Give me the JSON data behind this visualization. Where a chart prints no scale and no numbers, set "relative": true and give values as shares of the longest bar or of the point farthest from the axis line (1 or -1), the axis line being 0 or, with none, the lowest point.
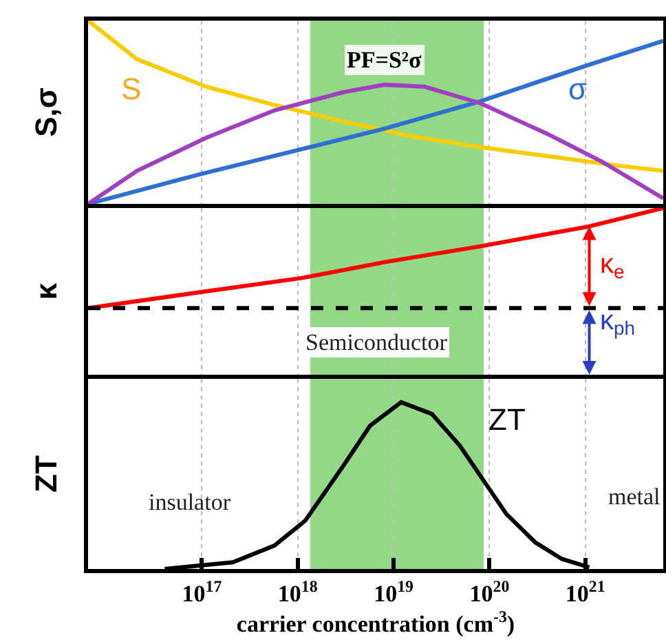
{
  "chart_data": [
    {
      "type": "line",
      "ylabel": "S,σ",
      "relative": true,
      "log": "x",
      "xlim": [
        6500000000000000.0,
        6.5e+21
      ],
      "xticks": [
        {
          "value": 1e+17,
          "label": null
        },
        {
          "value": 1e+18,
          "label": null
        },
        {
          "value": 1e+19,
          "label": null
        },
        {
          "value": 1e+20,
          "label": null
        },
        {
          "value": 1e+21,
          "label": null
        }
      ],
      "grid": "x",
      "tick_labels": false,
      "legend": false,
      "marker": "none",
      "line_style": "solid",
      "bands": [
        {
          "axis": "x",
          "from": 1.35e+18,
          "to": 8.7e+19,
          "color": "#93d886"
        }
      ],
      "series": [
        {
          "name": "S",
          "color": "#f5cd00",
          "x": [
            6500000000000000.0,
            2.1e+16,
            1.1e+17,
            5.7e+17,
            3e+18,
            1.5e+19,
            8e+19,
            4.1e+20,
            2.1e+21,
            6.5e+21
          ],
          "values": [
            1.0,
            0.79,
            0.64,
            0.54,
            0.45,
            0.37,
            0.31,
            0.26,
            0.21,
            0.18
          ]
        },
        {
          "name": "σ",
          "color": "#2f6fd0",
          "x": [
            6500000000000000.0,
            1.1e+17,
            8e+18,
            8e+19,
            1.1e+21,
            6.5e+21
          ],
          "values": [
            0,
            0.17,
            0.41,
            0.56,
            0.76,
            0.89
          ]
        },
        {
          "name": "PF=S²σ",
          "color": "#a040c0",
          "x": [
            6500000000000000.0,
            2.1e+16,
            1.1e+17,
            5.7e+17,
            3e+18,
            8e+18,
            2.1e+19,
            8e+19,
            4.1e+20,
            1.5e+21,
            6.5e+21
          ],
          "values": [
            0,
            0.18,
            0.36,
            0.51,
            0.61,
            0.65,
            0.64,
            0.55,
            0.38,
            0.23,
            0.03
          ]
        }
      ]
    },
    {
      "type": "line",
      "ylabel": "κ",
      "relative": true,
      "log": "x",
      "xlim": [
        6500000000000000.0,
        6.5e+21
      ],
      "xticks": [
        {
          "value": 1e+17,
          "label": null
        },
        {
          "value": 1e+18,
          "label": null
        },
        {
          "value": 1e+19,
          "label": null
        },
        {
          "value": 1e+20,
          "label": null
        },
        {
          "value": 1e+21,
          "label": null
        }
      ],
      "grid": "x",
      "tick_labels": false,
      "legend": false,
      "marker": "none",
      "line_style": "solid",
      "bands": [
        {
          "axis": "x",
          "from": 1.35e+18,
          "to": 8.7e+19,
          "color": "#93d886"
        }
      ],
      "ref_lines": [
        {
          "axis": "y",
          "value": 0.4,
          "color": "#000000",
          "line_style": "dashed"
        }
      ],
      "annotations": [
        "Semiconductor",
        "κ$_{e}$",
        "κ$_{ph}$"
      ],
      "series": [
        {
          "color": "#ff0000",
          "x": [
            6500000000000000.0,
            1.1e+17,
            1.1e+18,
            8e+18,
            8e+19,
            1.1e+21,
            6.5e+21
          ],
          "values": [
            0.4,
            0.5,
            0.58,
            0.675,
            0.77,
            0.89,
            1.0
          ]
        }
      ]
    },
    {
      "type": "line",
      "ylabel": "ZT",
      "xlabel": "carrier concentration (cm$^{-3}$)",
      "relative": true,
      "log": "x",
      "xlim": [
        6500000000000000.0,
        6.5e+21
      ],
      "xticks": [
        {
          "value": 1e+17,
          "label": "10$^{17}$"
        },
        {
          "value": 1e+18,
          "label": "10$^{18}$"
        },
        {
          "value": 1e+19,
          "label": "10$^{19}$"
        },
        {
          "value": 1e+20,
          "label": "10$^{20}$"
        },
        {
          "value": 1e+21,
          "label": "10$^{21}$"
        }
      ],
      "grid": "x",
      "tick_labels": "x",
      "legend": false,
      "marker": "none",
      "line_style": "solid",
      "bands": [
        {
          "axis": "x",
          "from": 1.35e+18,
          "to": 8.7e+19,
          "color": "#93d886"
        }
      ],
      "annotations": [
        "insulator",
        "metal"
      ],
      "series": [
        {
          "name": "ZT",
          "color": "#000000",
          "x": [
            4.1e+16,
            2.1e+17,
            5.7e+17,
            1.2e+18,
            3e+18,
            5.7e+18,
            1.2e+19,
            2.5e+19,
            4.9e+19,
            8e+19,
            1.5e+20,
            3e+20,
            5.7e+20,
            1.1e+21
          ],
          "values": [
            0,
            0.04,
            0.14,
            0.29,
            0.62,
            0.86,
            1.0,
            0.93,
            0.74,
            0.56,
            0.33,
            0.16,
            0.06,
            0.01
          ]
        }
      ]
    }
  ]
}
